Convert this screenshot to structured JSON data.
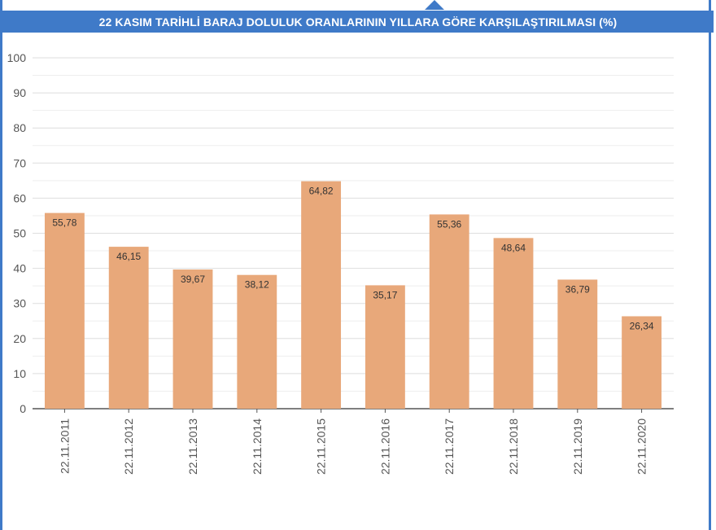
{
  "title": "22 KASIM TARİHLİ BARAJ DOLULUK ORANLARININ YILLARA GÖRE KARŞILAŞTIRILMASI (%)",
  "colors": {
    "accent": "#3f7ac8",
    "bar": "#e8a87a",
    "grid": "#dddddd",
    "axis": "#555555"
  },
  "chart_data": {
    "type": "bar",
    "title": "22 KASIM TARİHLİ BARAJ DOLULUK ORANLARININ YILLARA GÖRE KARŞILAŞTIRILMASI (%)",
    "xlabel": "",
    "ylabel": "",
    "ylim": [
      0,
      100
    ],
    "yticks": [
      0,
      10,
      20,
      30,
      40,
      50,
      60,
      70,
      80,
      90,
      100
    ],
    "grid": true,
    "categories": [
      "22.11.2011",
      "22.11.2012",
      "22.11.2013",
      "22.11.2014",
      "22.11.2015",
      "22.11.2016",
      "22.11.2017",
      "22.11.2018",
      "22.11.2019",
      "22.11.2020"
    ],
    "values": [
      55.78,
      46.15,
      39.67,
      38.12,
      64.82,
      35.17,
      55.36,
      48.64,
      36.79,
      26.34
    ],
    "value_labels": [
      "55,78",
      "46,15",
      "39,67",
      "38,12",
      "64,82",
      "35,17",
      "55,36",
      "48,64",
      "36,79",
      "26,34"
    ]
  }
}
